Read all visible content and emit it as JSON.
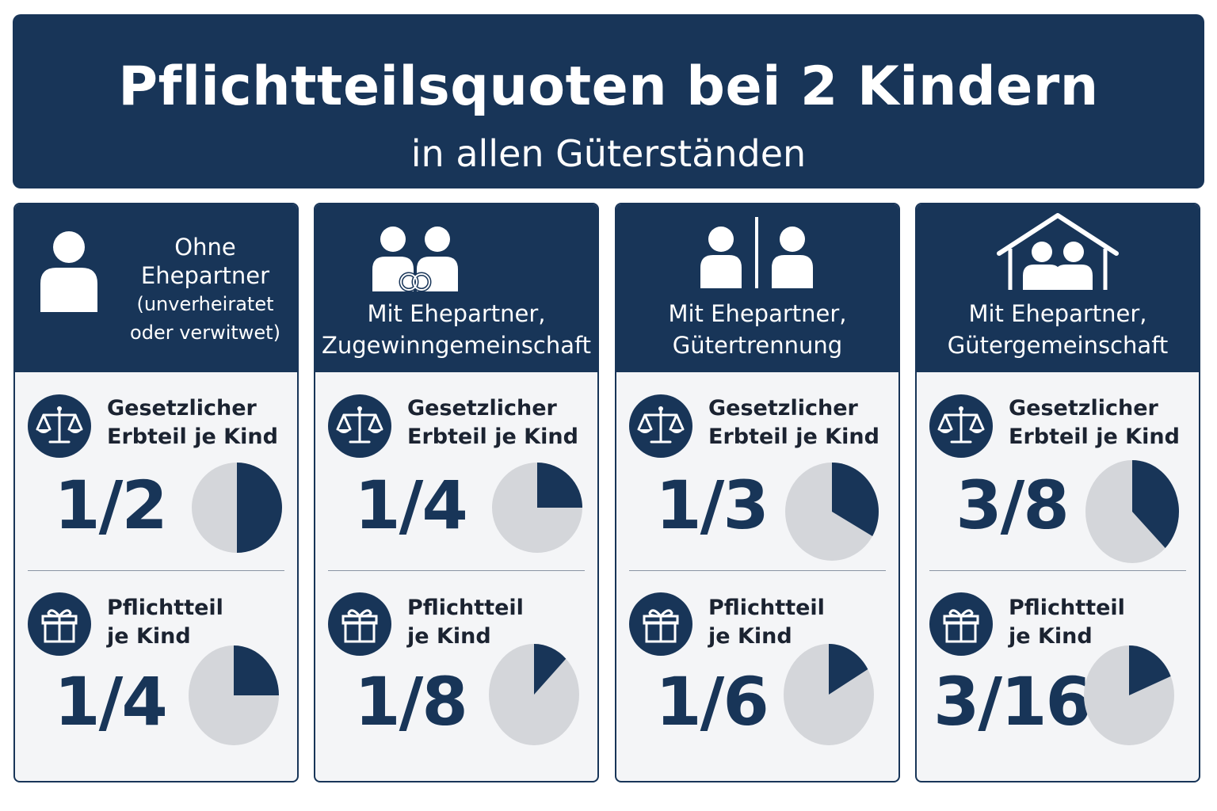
{
  "header": {
    "title": "Pflichtteilsquoten bei 2 Kindern",
    "subtitle": "in allen Güterständen"
  },
  "colors": {
    "navy": "#183558",
    "pie_rest": "#d4d6da",
    "card_bg": "#f4f5f7"
  },
  "sections": {
    "erbteil_label": "Gesetzlicher\nErbteil je Kind",
    "pflichtteil_label": "Pflichtteil\nje Kind"
  },
  "cards": [
    {
      "icon": "single-person-icon",
      "label_line1": "Ohne Ehepartner",
      "label_line2": "(unverheiratet",
      "label_line3": "oder verwitwet)",
      "erbteil": "1/2",
      "erbteil_fraction": 0.5,
      "pflichtteil": "1/4",
      "pflichtteil_fraction": 0.25
    },
    {
      "icon": "couple-rings-icon",
      "label": "Mit Ehepartner,\nZugewinngemeinschaft",
      "erbteil": "1/4",
      "erbteil_fraction": 0.25,
      "pflichtteil": "1/8",
      "pflichtteil_fraction": 0.125
    },
    {
      "icon": "separated-couple-icon",
      "label": "Mit Ehepartner,\nGütertrennung",
      "erbteil": "1/3",
      "erbteil_fraction": 0.3333,
      "pflichtteil": "1/6",
      "pflichtteil_fraction": 0.1667
    },
    {
      "icon": "couple-house-icon",
      "label": "Mit Ehepartner,\nGütergemeinschaft",
      "erbteil": "3/8",
      "erbteil_fraction": 0.375,
      "pflichtteil": "3/16",
      "pflichtteil_fraction": 0.1875
    }
  ]
}
